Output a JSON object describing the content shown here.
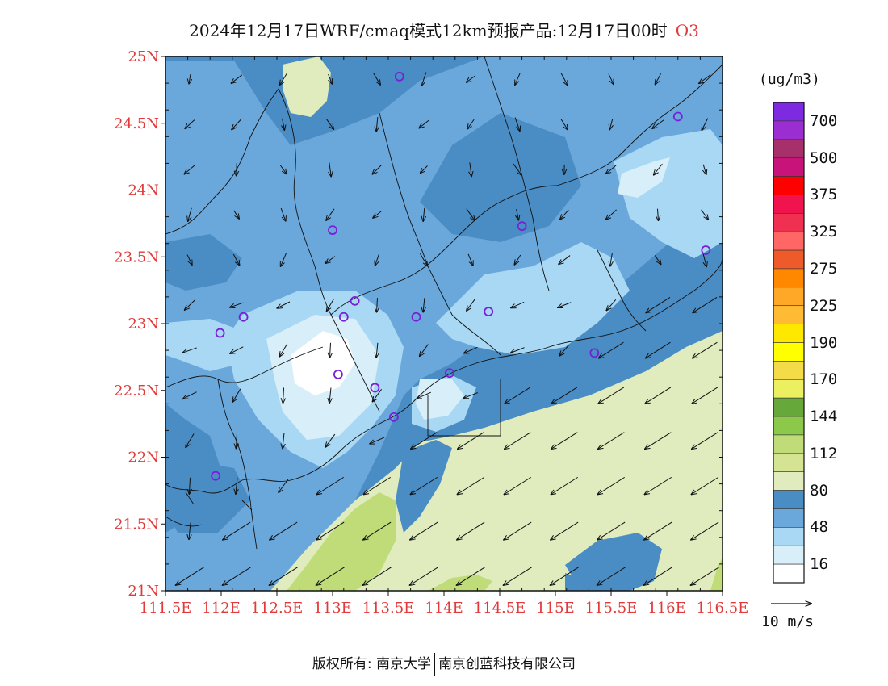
{
  "title": {
    "text": "2024年12月17日WRF/cmaq模式12km预报产品:12月17日00时",
    "species": "O3"
  },
  "map": {
    "lat_labels": [
      "25N",
      "24.5N",
      "24N",
      "23.5N",
      "23N",
      "22.5N",
      "22N",
      "21.5N",
      "21N"
    ],
    "lon_labels": [
      "111.5E",
      "112E",
      "112.5E",
      "113E",
      "113.5E",
      "114E",
      "114.5E",
      "115E",
      "115.5E",
      "116E",
      "116.5E"
    ],
    "lat_range": [
      21,
      25
    ],
    "lon_range": [
      111.5,
      116.5
    ],
    "station_markers": [
      {
        "lon": 113.6,
        "lat": 24.85
      },
      {
        "lon": 116.1,
        "lat": 24.55
      },
      {
        "lon": 113.0,
        "lat": 23.7
      },
      {
        "lon": 114.7,
        "lat": 23.73
      },
      {
        "lon": 116.35,
        "lat": 23.55
      },
      {
        "lon": 112.2,
        "lat": 23.05
      },
      {
        "lon": 113.1,
        "lat": 23.05
      },
      {
        "lon": 113.2,
        "lat": 23.17
      },
      {
        "lon": 113.75,
        "lat": 23.05
      },
      {
        "lon": 114.4,
        "lat": 23.09
      },
      {
        "lon": 111.99,
        "lat": 22.93
      },
      {
        "lon": 115.35,
        "lat": 22.78
      },
      {
        "lon": 113.05,
        "lat": 22.62
      },
      {
        "lon": 113.38,
        "lat": 22.52
      },
      {
        "lon": 114.05,
        "lat": 22.63
      },
      {
        "lon": 113.55,
        "lat": 22.3
      },
      {
        "lon": 111.95,
        "lat": 21.86
      }
    ]
  },
  "colorbar": {
    "units": "(ug/m3)",
    "labels": [
      "700",
      "500",
      "375",
      "325",
      "275",
      "225",
      "190",
      "170",
      "144",
      "112",
      "80",
      "48",
      "16"
    ],
    "colors": [
      "#7d2ae0",
      "#9a2ed0",
      "#a8306a",
      "#c8147a",
      "#ff0000",
      "#f0134e",
      "#f03050",
      "#ff6666",
      "#ee5a2a",
      "#ff8800",
      "#ffa726",
      "#ffbb33",
      "#ffe800",
      "#ffff00",
      "#f4dc48",
      "#ecf060",
      "#66a83a",
      "#8cc84a",
      "#c0dc78",
      "#d4e492",
      "#e0ecbe",
      "#4a8cc4",
      "#6aa8dc",
      "#a8d8f4",
      "#d8eef8",
      "#ffffff"
    ]
  },
  "wind_reference": {
    "label": "10 m/s"
  },
  "footer": {
    "left": "版权所有: 南京大学",
    "right": "南京创蓝科技有限公司"
  }
}
